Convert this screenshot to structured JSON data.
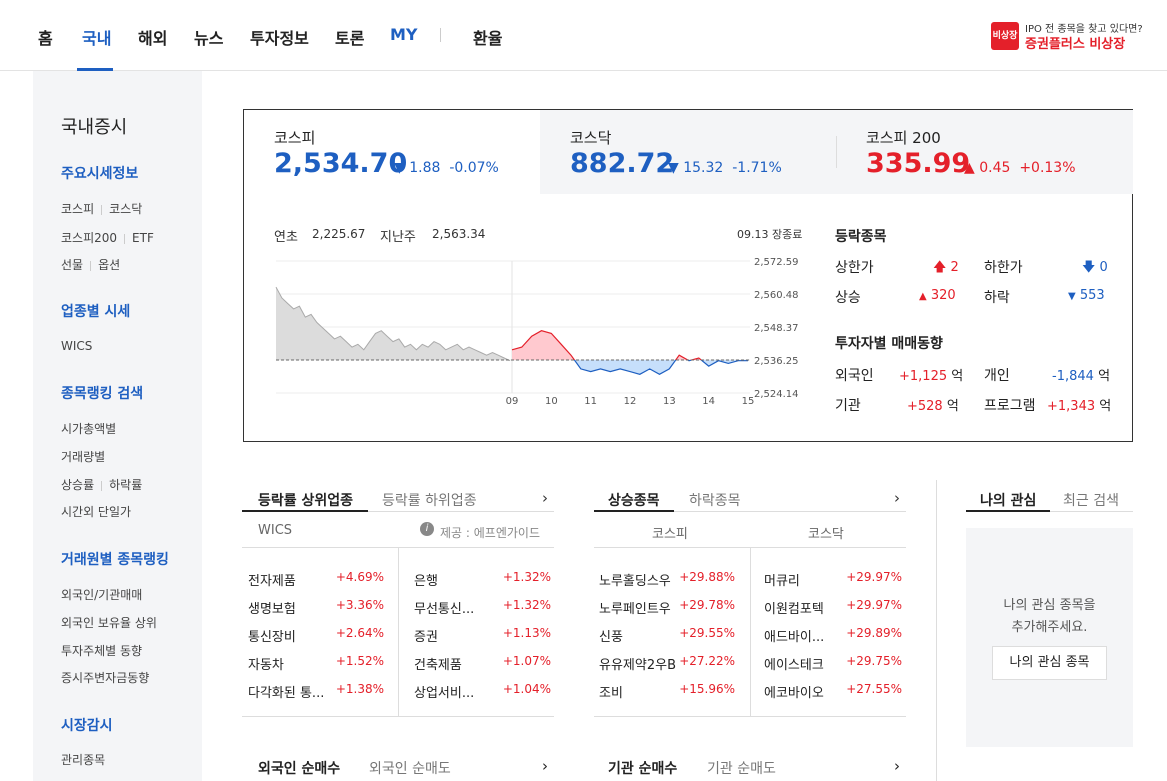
{
  "nav": {
    "items": [
      "홈",
      "국내",
      "해외",
      "뉴스",
      "투자정보",
      "토론",
      "MY",
      "환율"
    ],
    "promo_logo": "비상장",
    "promo_top": "IPO 전 종목을 찾고 있다면?",
    "promo_main": "증권플러스 비상장"
  },
  "sidebar": {
    "title": "국내증시",
    "sections": [
      {
        "head": "주요시세정보",
        "links": [
          [
            "코스피",
            "코스닥"
          ],
          [
            "코스피200",
            "ETF"
          ],
          [
            "선물",
            "옵션"
          ]
        ]
      },
      {
        "head": "업종별 시세",
        "links": [
          [
            "WICS"
          ]
        ]
      },
      {
        "head": "종목랭킹 검색",
        "links": [
          [
            "시가총액별"
          ],
          [
            "거래량별"
          ],
          [
            "상승률",
            "하락률"
          ],
          [
            "시간외 단일가"
          ]
        ]
      },
      {
        "head": "거래원별 종목랭킹",
        "links": [
          [
            "외국인/기관매매"
          ],
          [
            "외국인 보유율 상위"
          ],
          [
            "투자주체별 동향"
          ],
          [
            "증시주변자금동향"
          ]
        ]
      },
      {
        "head": "시장감시",
        "links": [
          [
            "관리종목"
          ]
        ]
      }
    ]
  },
  "indices": [
    {
      "name": "코스피",
      "value": "2,534.70",
      "arrow": "▼",
      "change": "1.88",
      "pct": "-0.07%",
      "color": "#1e5fc1"
    },
    {
      "name": "코스닥",
      "value": "882.72",
      "arrow": "▼",
      "change": "15.32",
      "pct": "-1.71%",
      "color": "#1e5fc1"
    },
    {
      "name": "코스피 200",
      "value": "335.99",
      "arrow": "▲",
      "change": "0.45",
      "pct": "+0.13%",
      "color": "#e4202a"
    }
  ],
  "chart_info": {
    "year_start_label": "연초",
    "year_start_value": "2,225.67",
    "last_week_label": "지난주",
    "last_week_value": "2,563.34",
    "status": "09.13 장종료"
  },
  "chart_data": {
    "type": "area",
    "baseline": 2536.25,
    "ylim": [
      2524.14,
      2572.59
    ],
    "y_ticks": [
      "2,572.59",
      "2,560.48",
      "2,548.37",
      "2,536.25",
      "2,524.14"
    ],
    "y_tick_values": [
      2572.59,
      2560.48,
      2548.37,
      2536.25,
      2524.14
    ],
    "x_ticks": [
      "09",
      "10",
      "11",
      "12",
      "13",
      "14",
      "15"
    ],
    "prev_day_x": [
      0,
      1,
      2,
      3,
      4,
      5,
      6,
      7,
      8,
      9,
      10,
      11,
      12,
      13,
      14,
      15,
      16,
      17,
      18,
      19,
      20,
      21,
      22,
      23,
      24,
      25,
      26,
      27,
      28,
      29,
      30,
      31,
      32,
      33,
      34,
      35,
      36,
      37,
      38,
      39,
      40
    ],
    "prev_day": [
      2563,
      2559,
      2557,
      2555,
      2556,
      2552,
      2553,
      2550,
      2548,
      2546,
      2544,
      2545,
      2543,
      2541,
      2542,
      2540,
      2543,
      2546,
      2547,
      2545,
      2543,
      2544,
      2541,
      2542,
      2540,
      2542,
      2541,
      2543,
      2542,
      2540,
      2541,
      2542,
      2540,
      2541,
      2540,
      2539,
      2538,
      2539,
      2538,
      2537,
      2536
    ],
    "today_x": [
      0,
      0.25,
      0.5,
      0.75,
      1,
      1.25,
      1.5,
      1.75,
      2,
      2.25,
      2.5,
      2.75,
      3,
      3.25,
      3.5,
      3.75,
      4,
      4.25,
      4.5,
      4.75,
      5,
      5.25,
      5.5,
      5.75,
      6
    ],
    "today": [
      2540,
      2541,
      2545,
      2547,
      2546,
      2542,
      2538,
      2533,
      2532,
      2533,
      2532,
      2533,
      2532,
      2531,
      2533,
      2531,
      2533,
      2538,
      2536,
      2537,
      2534,
      2536,
      2535,
      2536,
      2536
    ]
  },
  "stats": {
    "updown_title": "등락종목",
    "upper_label": "상한가",
    "upper_value": "2",
    "lower_label": "하한가",
    "lower_value": "0",
    "rise_label": "상승",
    "rise_value": "320",
    "fall_label": "하락",
    "fall_value": "553",
    "investor_title": "투자자별 매매동향",
    "foreign_label": "외국인",
    "foreign_value": "+1,125",
    "individual_label": "개인",
    "individual_value": "-1,844",
    "inst_label": "기관",
    "inst_value": "+528",
    "program_label": "프로그램",
    "program_value": "+1,343",
    "unit": "억"
  },
  "sector_panel": {
    "tabs": [
      "등락률 상위업종",
      "등락률 하위업종"
    ],
    "sub_left": "WICS",
    "sub_right": "제공 : 에프엔가이드",
    "left": [
      [
        "전자제품",
        "+4.69%"
      ],
      [
        "생명보험",
        "+3.36%"
      ],
      [
        "통신장비",
        "+2.64%"
      ],
      [
        "자동차",
        "+1.52%"
      ],
      [
        "다각화된 통...",
        "+1.38%"
      ]
    ],
    "right": [
      [
        "은행",
        "+1.32%"
      ],
      [
        "무선통신...",
        "+1.32%"
      ],
      [
        "증권",
        "+1.13%"
      ],
      [
        "건축제품",
        "+1.07%"
      ],
      [
        "상업서비...",
        "+1.04%"
      ]
    ]
  },
  "stock_panel": {
    "tabs": [
      "상승종목",
      "하락종목"
    ],
    "sub_left": "코스피",
    "sub_right": "코스닥",
    "left": [
      [
        "노루홀딩스우",
        "+29.88%"
      ],
      [
        "노루페인트우",
        "+29.78%"
      ],
      [
        "신풍",
        "+29.55%"
      ],
      [
        "유유제약2우B",
        "+27.22%"
      ],
      [
        "조비",
        "+15.96%"
      ]
    ],
    "right": [
      [
        "머큐리",
        "+29.97%"
      ],
      [
        "이원컴포텍",
        "+29.97%"
      ],
      [
        "애드바이...",
        "+29.89%"
      ],
      [
        "에이스테크",
        "+29.75%"
      ],
      [
        "에코바이오",
        "+27.55%"
      ]
    ]
  },
  "my_panel": {
    "tabs": [
      "나의 관심",
      "최근 검색"
    ],
    "message_1": "나의 관심 종목을",
    "message_2": "추가해주세요.",
    "button": "나의 관심 종목"
  },
  "bottom_left": {
    "tabs": [
      "외국인 순매수",
      "외국인 순매도"
    ]
  },
  "bottom_right": {
    "tabs": [
      "기관 순매수",
      "기관 순매도"
    ]
  },
  "chevron": "›"
}
